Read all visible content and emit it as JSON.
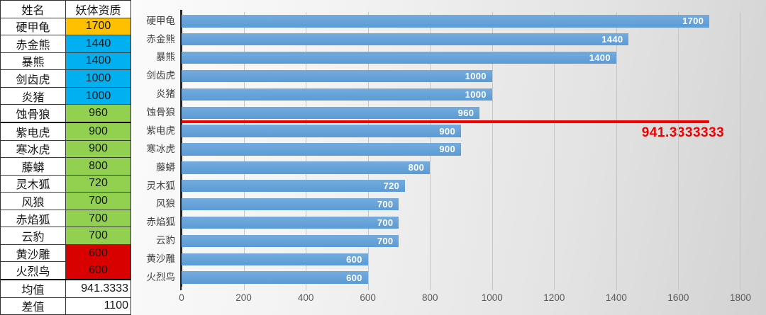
{
  "table": {
    "headers": [
      "姓名",
      "妖体资质"
    ],
    "rows": [
      {
        "name": "硬甲龟",
        "value": "1700",
        "color": "#FFC000"
      },
      {
        "name": "赤金熊",
        "value": "1440",
        "color": "#00B0F0"
      },
      {
        "name": "暴熊",
        "value": "1400",
        "color": "#00B0F0"
      },
      {
        "name": "剑齿虎",
        "value": "1000",
        "color": "#00B0F0"
      },
      {
        "name": "炎猪",
        "value": "1000",
        "color": "#00B0F0"
      },
      {
        "name": "蚀骨狼",
        "value": "960",
        "color": "#92D050",
        "thick_below": true
      },
      {
        "name": "紫电虎",
        "value": "900",
        "color": "#92D050"
      },
      {
        "name": "寒冰虎",
        "value": "900",
        "color": "#92D050"
      },
      {
        "name": "藤蟒",
        "value": "800",
        "color": "#92D050"
      },
      {
        "name": "灵木狐",
        "value": "720",
        "color": "#92D050"
      },
      {
        "name": "风狼",
        "value": "700",
        "color": "#92D050"
      },
      {
        "name": "赤焰狐",
        "value": "700",
        "color": "#92D050"
      },
      {
        "name": "云豹",
        "value": "700",
        "color": "#92D050"
      },
      {
        "name": "黄沙雕",
        "value": "600",
        "color": "#D90000"
      },
      {
        "name": "火烈鸟",
        "value": "600",
        "color": "#D90000",
        "thick_below": true
      }
    ],
    "summary_rows": [
      {
        "label": "均值",
        "value": "941.3333"
      },
      {
        "label": "差值",
        "value": "1100"
      }
    ]
  },
  "chart_data": {
    "type": "bar",
    "orientation": "horizontal",
    "title": "",
    "categories": [
      "硬甲龟",
      "赤金熊",
      "暴熊",
      "剑齿虎",
      "炎猪",
      "蚀骨狼",
      "紫电虎",
      "寒冰虎",
      "藤蟒",
      "灵木狐",
      "风狼",
      "赤焰狐",
      "云豹",
      "黄沙雕",
      "火烈鸟"
    ],
    "values": [
      1700,
      1440,
      1400,
      1000,
      1000,
      960,
      900,
      900,
      800,
      720,
      700,
      700,
      700,
      600,
      600
    ],
    "data_labels_visible": true,
    "bar_color": "#5B9BD5",
    "data_label_color": "#FFFFFF",
    "xlim": [
      0,
      1800
    ],
    "x_ticks": [
      0,
      200,
      400,
      600,
      800,
      1000,
      1200,
      1400,
      1600,
      1800
    ],
    "grid": true,
    "legend": "none",
    "mean_line": {
      "value": 941.3333333,
      "label": "941.3333333",
      "color": "#FF0000",
      "extends_to": 1700
    }
  }
}
